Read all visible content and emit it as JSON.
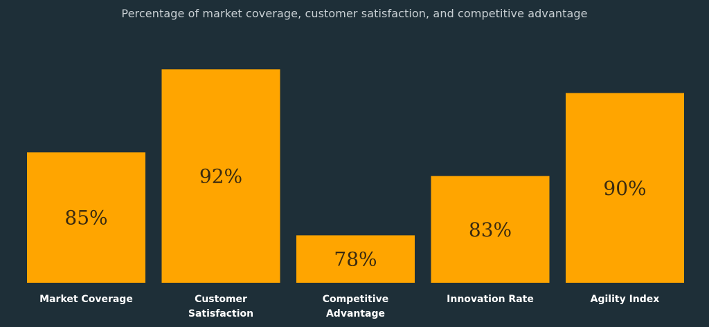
{
  "chart_data": {
    "type": "bar",
    "title": "Percentage of market coverage, customer satisfaction, and competitive advantage",
    "categories": [
      "Market Coverage",
      "Customer Satisfaction",
      "Competitive Advantage",
      "Innovation Rate",
      "Agility Index"
    ],
    "category_lines": [
      [
        "Market Coverage"
      ],
      [
        "Customer",
        "Satisfaction"
      ],
      [
        "Competitive",
        "Advantage"
      ],
      [
        "Innovation Rate"
      ],
      [
        "Agility Index"
      ]
    ],
    "values": [
      85,
      92,
      78,
      83,
      90
    ],
    "value_labels": [
      "85%",
      "92%",
      "78%",
      "83%",
      "90%"
    ],
    "ylim": [
      74,
      94
    ],
    "grid": false,
    "legend": "none",
    "xlabel": "",
    "ylabel": ""
  },
  "colors": {
    "background": "#1e2f38",
    "bar": "#ffa500",
    "value_text": "#3a2a10",
    "label_text": "#ffffff",
    "title_text": "#c9d0d4"
  }
}
